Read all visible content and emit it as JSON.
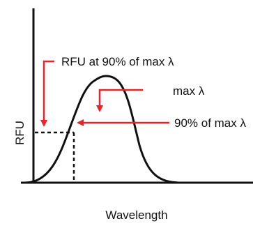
{
  "diagram": {
    "y_axis_label": "RFU",
    "x_axis_label": "Wavelength",
    "annotations": {
      "rfu_at_90": "RFU at 90% of max λ",
      "max_lambda": "max λ",
      "ninety_pct": "90% of max λ"
    },
    "colors": {
      "curve": "#111111",
      "arrows": "#e8232a",
      "axes": "#111111",
      "guides": "#111111"
    }
  }
}
